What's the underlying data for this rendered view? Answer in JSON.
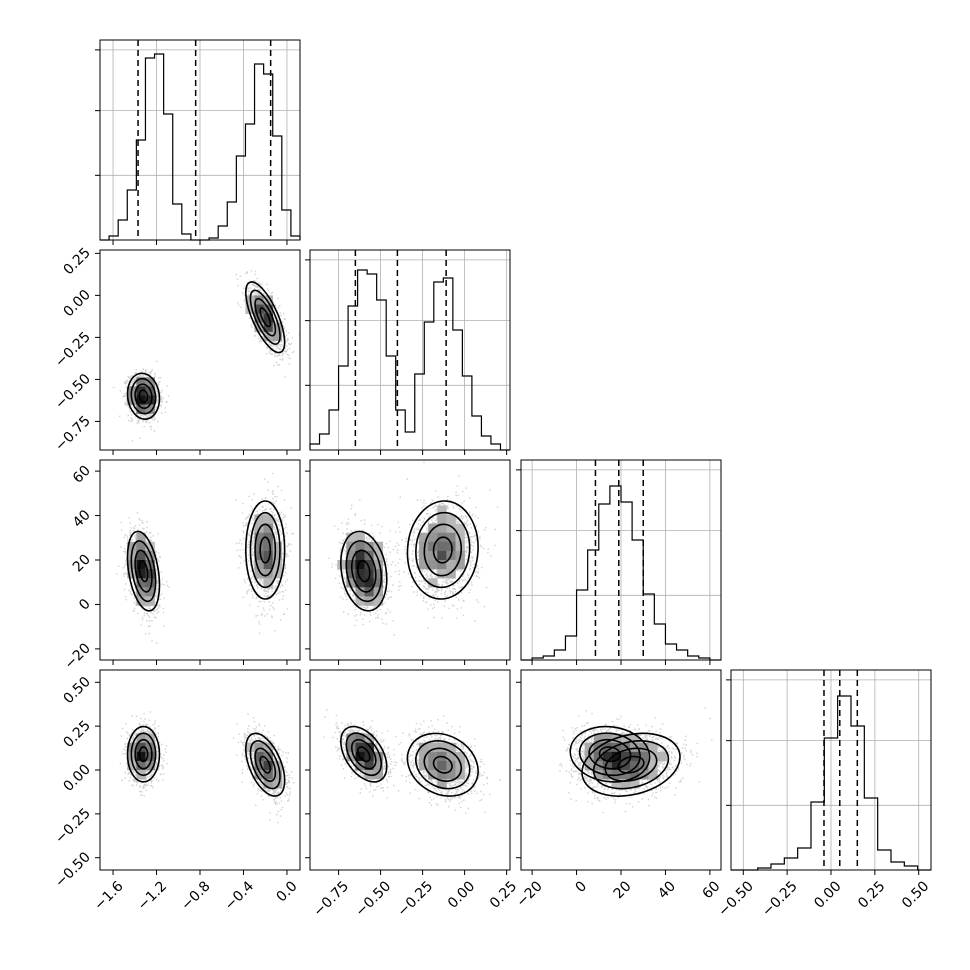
{
  "chart_data": {
    "type": "corner",
    "variables": [
      {
        "range": [
          -1.72,
          0.12
        ],
        "ticks": [
          -1.6,
          -1.2,
          -0.8,
          -0.4,
          0.0
        ],
        "tick_labels": [
          "−1.6",
          "−1.2",
          "−0.8",
          "−0.4",
          "0.0"
        ],
        "quantiles": [
          -1.37,
          -0.84,
          -0.15
        ],
        "histogram": [
          0,
          2,
          10,
          25,
          50,
          91,
          93,
          63,
          18,
          3,
          0,
          0,
          1,
          7,
          19,
          42,
          58,
          88,
          83,
          52,
          15,
          2
        ]
      },
      {
        "range": [
          -0.92,
          0.27
        ],
        "ticks": [
          -0.75,
          -0.5,
          -0.25,
          0.0,
          0.25
        ],
        "tick_labels": [
          "−0.75",
          "−0.50",
          "−0.25",
          "0.00",
          "0.25"
        ],
        "quantiles": [
          -0.65,
          -0.4,
          -0.11
        ],
        "histogram": [
          3,
          8,
          20,
          42,
          72,
          90,
          88,
          75,
          47,
          20,
          9,
          38,
          64,
          84,
          86,
          60,
          37,
          17,
          7,
          3,
          0
        ]
      },
      {
        "range": [
          -25,
          65
        ],
        "ticks": [
          -20,
          0,
          20,
          40,
          60
        ],
        "tick_labels": [
          "−20",
          "0",
          "20",
          "40",
          "60"
        ],
        "quantiles": [
          8.5,
          19,
          30
        ],
        "histogram": [
          0,
          1,
          2,
          5,
          12,
          35,
          55,
          78,
          87,
          79,
          60,
          33,
          18,
          8,
          5,
          2,
          1,
          0
        ]
      },
      {
        "range": [
          -0.57,
          0.57
        ],
        "ticks": [
          -0.5,
          -0.25,
          0.0,
          0.25,
          0.5
        ],
        "tick_labels": [
          "−0.50",
          "−0.25",
          "0.00",
          "0.25",
          "0.50"
        ],
        "quantiles": [
          -0.04,
          0.05,
          0.15
        ],
        "histogram": [
          0,
          0,
          1,
          3,
          6,
          11,
          34,
          66,
          87,
          72,
          36,
          10,
          4,
          2,
          0
        ]
      }
    ],
    "modes": [
      {
        "weight": 0.5,
        "mean": [
          -1.32,
          -0.6,
          15.0,
          0.09
        ],
        "sd": [
          0.07,
          0.065,
          8.5,
          0.075
        ]
      },
      {
        "weight": 0.5,
        "mean": [
          -0.2,
          -0.13,
          24.5,
          0.03
        ],
        "sd": [
          0.085,
          0.1,
          10.5,
          0.085
        ]
      }
    ],
    "histogram_ylim": [
      0,
      100
    ],
    "grid": true,
    "legend": "none"
  }
}
